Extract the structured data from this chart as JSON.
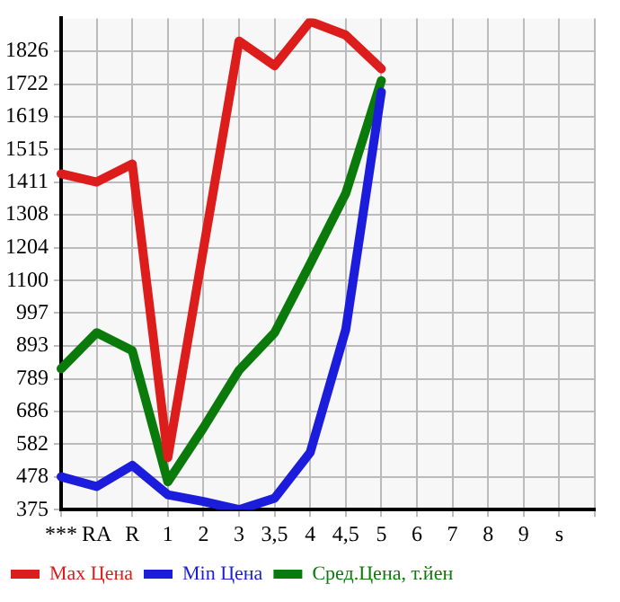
{
  "chart_data": {
    "type": "line",
    "categories": [
      "***",
      "RA",
      "R",
      "1",
      "2",
      "3",
      "3,5",
      "4",
      "4,5",
      "5",
      "6",
      "7",
      "8",
      "9",
      "s",
      null
    ],
    "series": [
      {
        "name": "Max Цена",
        "color": "#dd1c1c",
        "values": [
          1438,
          1412,
          1469,
          540,
          1200,
          1858,
          1780,
          1920,
          1877,
          1770,
          null,
          null,
          null,
          null,
          null,
          null
        ]
      },
      {
        "name": "Min Цена",
        "color": "#1c1cdd",
        "values": [
          479,
          448,
          515,
          422,
          401,
          375,
          411,
          556,
          945,
          1697,
          null,
          null,
          null,
          null,
          null,
          null
        ]
      },
      {
        "name": "Сред.Цена, т.йен",
        "color": "#0a7a0a",
        "values": [
          821,
          935,
          878,
          463,
          634,
          816,
          935,
          1153,
          1376,
          1733,
          null,
          null,
          null,
          null,
          null,
          null
        ]
      }
    ],
    "ylim": [
      375,
      1930
    ],
    "yticks": [
      375,
      478,
      582,
      686,
      789,
      893,
      997,
      1100,
      1204,
      1308,
      1411,
      1515,
      1619,
      1722,
      1826
    ],
    "grid": true,
    "legend": "bottom",
    "marker": "none",
    "line_style": "solid"
  }
}
